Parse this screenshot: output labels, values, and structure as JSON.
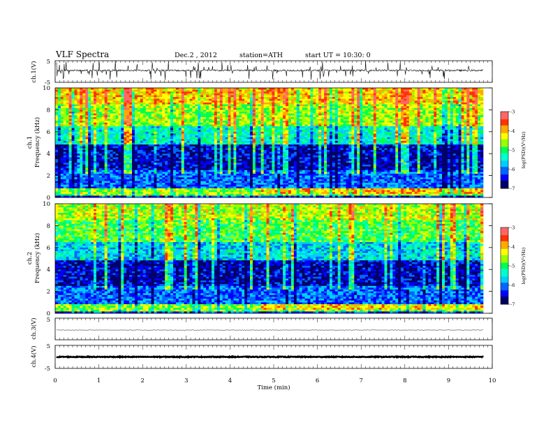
{
  "header": {
    "title": "VLF  Spectra",
    "date": "Dec.2  , 2012",
    "station": "station=ATH",
    "start": "start  UT  =   10:30: 0"
  },
  "chart_data": [
    {
      "type": "line",
      "panel": "ch1-waveform",
      "ylabel": "ch.1(V)",
      "ylim": [
        -5,
        5
      ],
      "yticks": [
        "5",
        "-5"
      ],
      "baseline": 0.5,
      "color": "#000000"
    },
    {
      "type": "heatmap",
      "panel": "ch1-spectrogram",
      "ylabel_channel": "ch.1",
      "ylabel": "Frequency  (kHz)",
      "ylim": [
        0,
        10
      ],
      "yticks": [
        "0",
        "2",
        "4",
        "6",
        "8",
        "10"
      ],
      "xlim": [
        0,
        9.8
      ],
      "zlim": [
        -7,
        -3
      ],
      "colorbar": {
        "label": "log(PSD)(V²/Hz)",
        "ticks": [
          "-3",
          "-4",
          "-5",
          "-6",
          "-7"
        ]
      },
      "bands": [
        {
          "fmin": 0,
          "fmax": 0.25,
          "level": -6.2
        },
        {
          "fmin": 0.25,
          "fmax": 0.8,
          "level": -4.6
        },
        {
          "fmin": 0.8,
          "fmax": 2.5,
          "level": -6.1
        },
        {
          "fmin": 2.5,
          "fmax": 4.8,
          "level": -6.6
        },
        {
          "fmin": 4.8,
          "fmax": 6.5,
          "level": -5.4
        },
        {
          "fmin": 6.5,
          "fmax": 8.5,
          "level": -4.6
        },
        {
          "fmin": 8.5,
          "fmax": 10,
          "level": -4.1
        }
      ]
    },
    {
      "type": "heatmap",
      "panel": "ch2-spectrogram",
      "ylabel_channel": "ch.2",
      "ylabel": "Frequency  (kHz)",
      "ylim": [
        0,
        10
      ],
      "yticks": [
        "0",
        "2",
        "4",
        "6",
        "8",
        "10"
      ],
      "xlim": [
        0,
        9.8
      ],
      "zlim": [
        -7,
        -3
      ],
      "colorbar": {
        "label": "log(PSD)(V²/Hz)",
        "ticks": [
          "-3",
          "-4",
          "-5",
          "-6",
          "-7"
        ]
      },
      "bands": [
        {
          "fmin": 0,
          "fmax": 0.25,
          "level": -6.2
        },
        {
          "fmin": 0.25,
          "fmax": 0.8,
          "level": -4.7
        },
        {
          "fmin": 0.8,
          "fmax": 2.5,
          "level": -6.1
        },
        {
          "fmin": 2.5,
          "fmax": 4.8,
          "level": -6.6
        },
        {
          "fmin": 4.8,
          "fmax": 6.5,
          "level": -5.6
        },
        {
          "fmin": 6.5,
          "fmax": 8.5,
          "level": -4.9
        },
        {
          "fmin": 8.5,
          "fmax": 10,
          "level": -4.5
        }
      ]
    },
    {
      "type": "line",
      "panel": "ch3-waveform",
      "ylabel": "ch.3(V)",
      "ylim": [
        -5,
        5
      ],
      "yticks": [
        "5"
      ],
      "baseline": -0.5,
      "color": "#000000"
    },
    {
      "type": "line",
      "panel": "ch4-waveform",
      "ylabel": "ch.4(V)",
      "ylim": [
        -5,
        5
      ],
      "yticks": [
        "5",
        "-5"
      ],
      "baseline": 0,
      "color": "#000000"
    }
  ],
  "xaxis": {
    "xlabel": "Time  (min)",
    "xlim": [
      0,
      10
    ],
    "ticks": [
      "0",
      "1",
      "2",
      "3",
      "4",
      "5",
      "6",
      "7",
      "8",
      "9",
      "10"
    ]
  },
  "colors": {
    "frame": "#000000",
    "scale": [
      "#000066",
      "#0000ff",
      "#0066ff",
      "#00ccff",
      "#00ffcc",
      "#00ff55",
      "#99ff00",
      "#ffff00",
      "#ffaa00",
      "#ff3300",
      "#ff6666",
      "#ffffff"
    ]
  }
}
